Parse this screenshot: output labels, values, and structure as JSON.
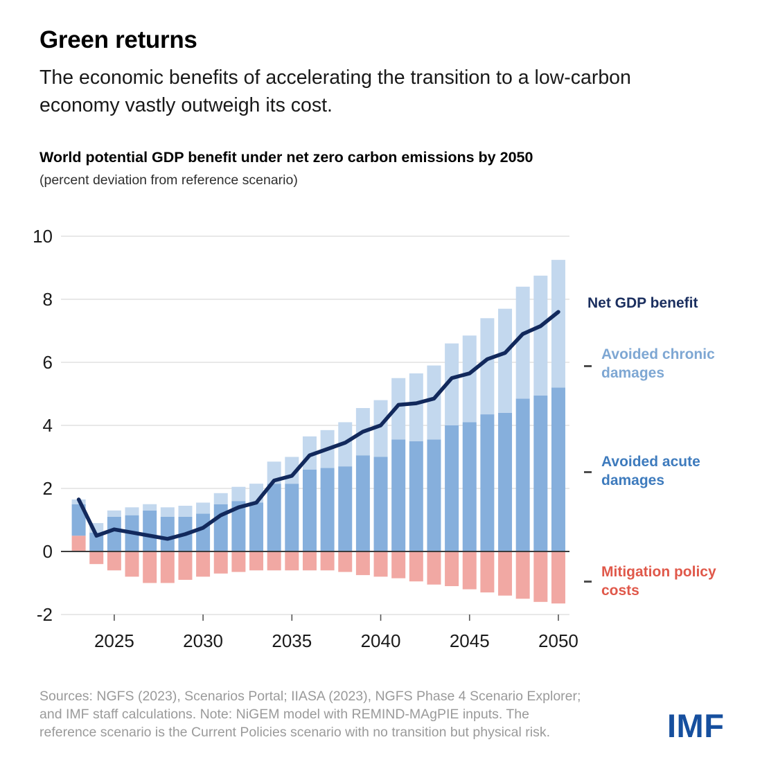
{
  "header": {
    "title": "Green returns",
    "subtitle": "The economic benefits of accelerating the transition to a low-carbon economy vastly outweigh its cost."
  },
  "chart_heading": {
    "title": "World potential GDP benefit under net zero carbon emissions by 2050",
    "subtitle": "(percent deviation from reference scenario)"
  },
  "legend": {
    "net": "Net GDP benefit",
    "chronic": "Avoided chronic damages",
    "acute": "Avoided acute damages",
    "costs": "Mitigation policy costs"
  },
  "footer": {
    "source_line_1": "Sources: NGFS (2023), Scenarios Portal; IIASA (2023), NGFS Phase 4 Scenario Explorer;",
    "source_line_2": "and IMF staff calculations. Note: NiGEM model with REMIND-MAgPIE inputs. The",
    "source_line_3": "reference scenario is the Current Policies scenario with no transition but physical risk.",
    "logo": "IMF"
  },
  "colors": {
    "acute_bar": "#86afdc",
    "chronic_bar": "#c3d8ee",
    "costs_bar": "#f1a8a3",
    "net_line": "#12295c",
    "grid": "#d9d9d9",
    "zero_line": "#3c3c3c",
    "tick": "#555555",
    "axis_text": "#1a1a1a",
    "logo_blue": "#164f9e"
  },
  "chart_data": {
    "type": "bar",
    "subtype": "stacked-bars-with-line-overlay",
    "title": "World potential GDP benefit under net zero carbon emissions by 2050",
    "ylabel": "percent deviation from reference scenario",
    "ylim": [
      -2,
      10
    ],
    "grid": true,
    "legend_position": "right",
    "years": [
      2023,
      2024,
      2025,
      2026,
      2027,
      2028,
      2029,
      2030,
      2031,
      2032,
      2033,
      2034,
      2035,
      2036,
      2037,
      2038,
      2039,
      2040,
      2041,
      2042,
      2043,
      2044,
      2045,
      2046,
      2047,
      2048,
      2049,
      2050
    ],
    "x_ticks": [
      2025,
      2030,
      2035,
      2040,
      2045,
      2050
    ],
    "y_ticks": [
      10,
      8,
      6,
      4,
      2,
      0,
      -2
    ],
    "series": [
      {
        "name": "Avoided acute damages",
        "role": "bar-stack",
        "values": [
          1.0,
          0.6,
          1.1,
          1.15,
          1.3,
          1.1,
          1.1,
          1.2,
          1.5,
          1.6,
          1.55,
          2.15,
          2.15,
          2.6,
          2.65,
          2.7,
          3.05,
          3.0,
          3.55,
          3.5,
          3.55,
          4.0,
          4.1,
          4.35,
          4.4,
          4.85,
          4.95,
          5.2
        ]
      },
      {
        "name": "Avoided chronic damages",
        "role": "bar-stack",
        "values": [
          0.15,
          0.3,
          0.2,
          0.25,
          0.2,
          0.3,
          0.35,
          0.35,
          0.35,
          0.45,
          0.6,
          0.7,
          0.85,
          1.05,
          1.2,
          1.4,
          1.5,
          1.8,
          1.95,
          2.15,
          2.35,
          2.6,
          2.75,
          3.05,
          3.3,
          3.55,
          3.8,
          4.05
        ]
      },
      {
        "name": "Mitigation policy costs",
        "role": "bar-stack",
        "values": [
          0.5,
          -0.4,
          -0.6,
          -0.8,
          -1.0,
          -1.0,
          -0.9,
          -0.8,
          -0.7,
          -0.65,
          -0.6,
          -0.6,
          -0.6,
          -0.6,
          -0.6,
          -0.65,
          -0.75,
          -0.8,
          -0.85,
          -0.95,
          -1.05,
          -1.1,
          -1.2,
          -1.3,
          -1.4,
          -1.5,
          -1.6,
          -1.65
        ]
      },
      {
        "name": "Net GDP benefit",
        "role": "line",
        "values": [
          1.65,
          0.5,
          0.7,
          0.6,
          0.5,
          0.4,
          0.55,
          0.75,
          1.15,
          1.4,
          1.55,
          2.25,
          2.4,
          3.05,
          3.25,
          3.45,
          3.8,
          4.0,
          4.65,
          4.7,
          4.85,
          5.5,
          5.65,
          6.1,
          6.3,
          6.9,
          7.15,
          7.6
        ]
      }
    ]
  }
}
